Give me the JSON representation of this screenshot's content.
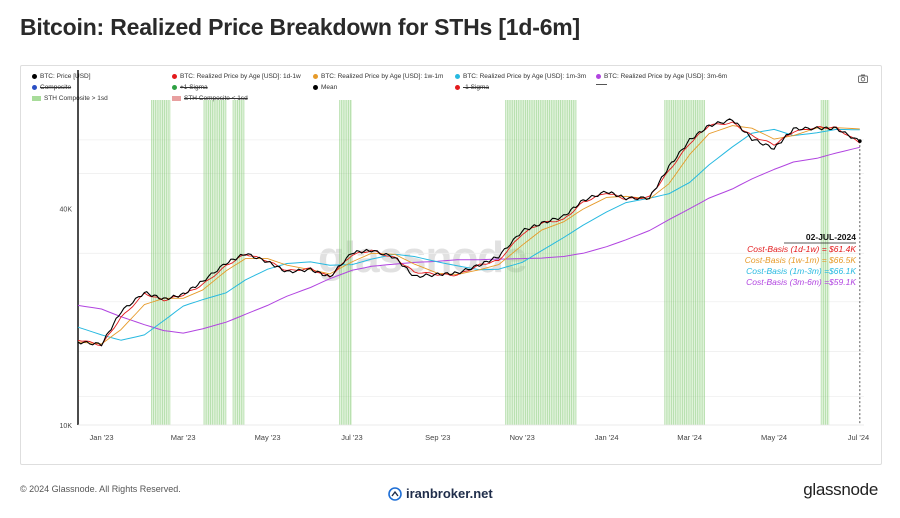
{
  "title": "Bitcoin: Realized Price Breakdown for STHs [1d-6m]",
  "legend": [
    {
      "label": "BTC: Price [USD]",
      "color": "#000000",
      "kind": "dot",
      "struck": false
    },
    {
      "label": "BTC: Realized Price by Age [USD]: 1d-1w",
      "color": "#e31a1c",
      "kind": "dot",
      "struck": false
    },
    {
      "label": "BTC: Realized Price by Age [USD]: 1w-1m",
      "color": "#e69a29",
      "kind": "dot",
      "struck": false
    },
    {
      "label": "BTC: Realized Price by Age [USD]: 1m-3m",
      "color": "#27b9e0",
      "kind": "dot",
      "struck": false
    },
    {
      "label": "BTC: Realized Price by Age [USD]: 3m-6m",
      "color": "#b144e0",
      "kind": "dot",
      "struck": false
    },
    {
      "label": "Composite",
      "color": "#2b4fc4",
      "kind": "dot",
      "struck": true
    },
    {
      "label": "+1 Sigma",
      "color": "#2ea043",
      "kind": "dot",
      "struck": true
    },
    {
      "label": "Mean",
      "color": "#000000",
      "kind": "dot",
      "struck": false
    },
    {
      "label": "-1 Sigma",
      "color": "#e31a1c",
      "kind": "dot",
      "struck": true
    },
    {
      "label": "",
      "color": "#555555",
      "kind": "dash",
      "struck": false
    },
    {
      "label": "STH Composite > 1sd",
      "color": "#a8dc9a",
      "kind": "swatch",
      "struck": false
    },
    {
      "label": "STH Composite < 1sd",
      "color": "#e8a0a0",
      "kind": "swatch",
      "struck": true
    }
  ],
  "annotation": {
    "date": "02-JUL-2024",
    "lines": [
      {
        "text": "Cost-Basis (1d-1w) = $61.4K",
        "color": "#e31a1c"
      },
      {
        "text": "Cost-Basis (1w-1m) = $66.5K",
        "color": "#e69a29"
      },
      {
        "text": "Cost-Basis (1m-3m) =$66.1K",
        "color": "#27b9e0"
      },
      {
        "text": "Cost-Basis (3m-6m) =$59.1K",
        "color": "#b144e0"
      }
    ]
  },
  "watermark": "glassnode",
  "footer": {
    "copyright": "© 2024 Glassnode. All Rights Reserved.",
    "site": "iranbroker.net",
    "brand": "glassnode"
  },
  "chart_data": {
    "type": "line",
    "y_scale": "log",
    "ylim": [
      10000,
      80000
    ],
    "yticks": [
      {
        "value": 10000,
        "label": "10K"
      },
      {
        "value": 40000,
        "label": "40K"
      }
    ],
    "xlim": [
      "2022-12-15",
      "2024-07-05"
    ],
    "xticks": [
      {
        "date": "2023-01-01",
        "label": "Jan '23"
      },
      {
        "date": "2023-03-01",
        "label": "Mar '23"
      },
      {
        "date": "2023-05-01",
        "label": "May '23"
      },
      {
        "date": "2023-07-01",
        "label": "Jul '23"
      },
      {
        "date": "2023-09-01",
        "label": "Sep '23"
      },
      {
        "date": "2023-11-01",
        "label": "Nov '23"
      },
      {
        "date": "2024-01-01",
        "label": "Jan '24"
      },
      {
        "date": "2024-03-01",
        "label": "Mar '24"
      },
      {
        "date": "2024-05-01",
        "label": "May '24"
      },
      {
        "date": "2024-07-01",
        "label": "Jul '24"
      }
    ],
    "x": [
      "2022-12-15",
      "2023-01-01",
      "2023-01-15",
      "2023-02-01",
      "2023-02-15",
      "2023-03-01",
      "2023-03-15",
      "2023-04-01",
      "2023-04-15",
      "2023-05-01",
      "2023-05-15",
      "2023-06-01",
      "2023-06-15",
      "2023-07-01",
      "2023-07-15",
      "2023-08-01",
      "2023-08-15",
      "2023-09-01",
      "2023-09-15",
      "2023-10-01",
      "2023-10-15",
      "2023-11-01",
      "2023-11-15",
      "2023-12-01",
      "2023-12-15",
      "2024-01-01",
      "2024-01-15",
      "2024-02-01",
      "2024-02-15",
      "2024-03-01",
      "2024-03-15",
      "2024-04-01",
      "2024-04-15",
      "2024-05-01",
      "2024-05-15",
      "2024-06-01",
      "2024-06-15",
      "2024-07-02"
    ],
    "series": [
      {
        "name": "BTC: Price [USD]",
        "color": "#000000",
        "width": 1.1,
        "values": [
          17000,
          16600,
          20900,
          23200,
          22300,
          23300,
          24800,
          28300,
          30100,
          28100,
          26900,
          27000,
          25600,
          30500,
          30300,
          29200,
          26100,
          25900,
          26600,
          27900,
          29100,
          35000,
          36200,
          37800,
          42600,
          44100,
          42700,
          43100,
          51600,
          62400,
          68000,
          69900,
          63100,
          58300,
          66200,
          67500,
          66000,
          61500
        ]
      },
      {
        "name": "BTC: Realized Price by Age [USD]: 1d-1w",
        "color": "#e31a1c",
        "width": 0.9,
        "values": [
          17100,
          16700,
          20000,
          22900,
          22400,
          23000,
          24300,
          28000,
          29700,
          28500,
          27100,
          26900,
          25900,
          29900,
          30200,
          29400,
          26600,
          26000,
          26400,
          27600,
          28600,
          34300,
          36000,
          37400,
          41800,
          43700,
          42900,
          42900,
          50500,
          61300,
          67400,
          69200,
          64200,
          59400,
          65800,
          67300,
          66300,
          61400
        ]
      },
      {
        "name": "BTC: Realized Price by Age [USD]: 1w-1m",
        "color": "#e69a29",
        "width": 0.9,
        "values": [
          17000,
          16800,
          18400,
          21600,
          22500,
          22500,
          23700,
          26800,
          29000,
          29000,
          27800,
          27000,
          26300,
          28400,
          30000,
          29800,
          28000,
          26400,
          26200,
          27000,
          27900,
          31600,
          34800,
          36700,
          39800,
          42900,
          43200,
          42500,
          46800,
          56400,
          64500,
          67900,
          66800,
          62300,
          63700,
          66900,
          67000,
          66500
        ]
      },
      {
        "name": "BTC: Realized Price by Age [USD]: 1m-3m",
        "color": "#27b9e0",
        "width": 1.0,
        "values": [
          18700,
          17800,
          17200,
          17800,
          19500,
          21400,
          22300,
          23300,
          25300,
          27100,
          28100,
          28400,
          27800,
          27900,
          28900,
          29800,
          29400,
          28400,
          27700,
          27000,
          27100,
          28300,
          30500,
          33200,
          35900,
          39100,
          41500,
          42700,
          43900,
          47200,
          52800,
          59300,
          64700,
          66300,
          63700,
          64900,
          66300,
          66100
        ]
      },
      {
        "name": "BTC: Realized Price by Age [USD]: 3m-6m",
        "color": "#b144e0",
        "width": 1.0,
        "values": [
          21500,
          21000,
          20000,
          19000,
          18300,
          18000,
          18500,
          19300,
          20300,
          21500,
          22800,
          24100,
          25500,
          26900,
          27600,
          28000,
          28300,
          28500,
          28800,
          28800,
          28900,
          29000,
          29100,
          29400,
          30000,
          31300,
          32700,
          34700,
          37200,
          39900,
          42700,
          45300,
          48300,
          51300,
          53800,
          55100,
          57000,
          59100
        ]
      }
    ],
    "highlight_bands": [
      [
        "2023-02-06",
        "2023-02-20"
      ],
      [
        "2023-03-16",
        "2023-04-01"
      ],
      [
        "2023-04-06",
        "2023-04-14"
      ],
      [
        "2023-06-22",
        "2023-07-01"
      ],
      [
        "2023-10-20",
        "2023-12-10"
      ],
      [
        "2024-02-12",
        "2024-03-12"
      ],
      [
        "2024-06-04",
        "2024-06-10"
      ]
    ]
  }
}
